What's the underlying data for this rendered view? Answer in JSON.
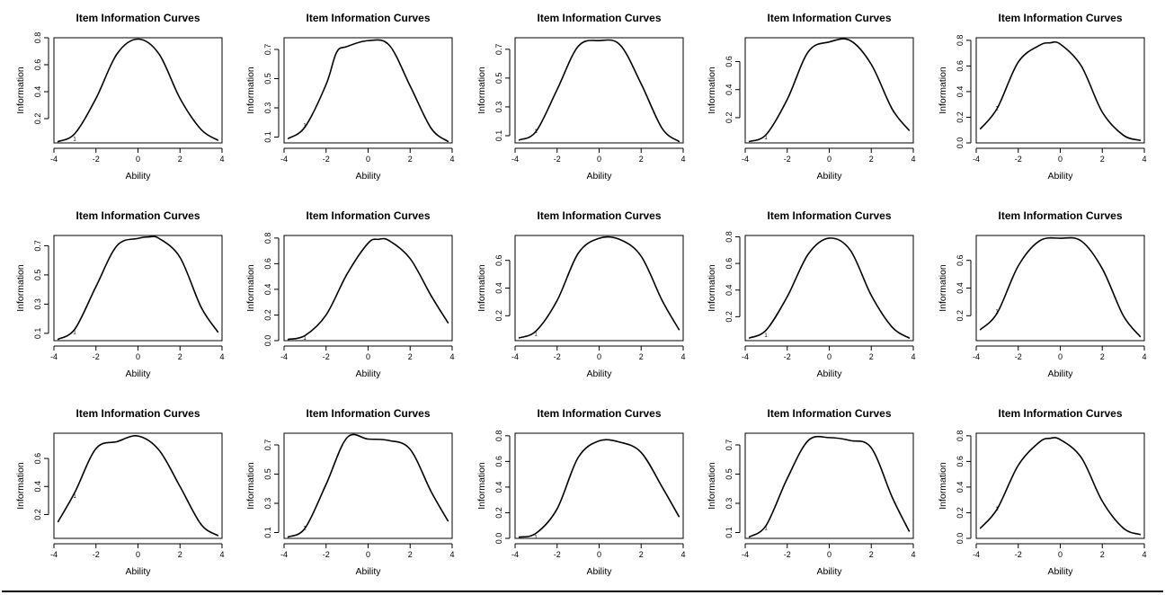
{
  "chart_data": [
    {
      "type": "line",
      "title": "Item Information Curves",
      "xlabel": "Ability",
      "ylabel": "Information",
      "xlim": [
        -4,
        4
      ],
      "ylim": [
        0.02,
        0.8
      ],
      "xticks": [
        "-4",
        "-2",
        "0",
        "2",
        "4"
      ],
      "yticks": [
        "0.2",
        "0.4",
        "0.6",
        "0.8"
      ],
      "item_marker": "1",
      "item_marker_at": [
        -3.1,
        0.05
      ],
      "series": [
        {
          "x": [
            -3.8,
            -3.0,
            -2.0,
            -1.0,
            0.0,
            1.0,
            2.0,
            3.0,
            3.8
          ],
          "y": [
            0.03,
            0.09,
            0.35,
            0.68,
            0.79,
            0.68,
            0.35,
            0.12,
            0.04
          ]
        }
      ]
    },
    {
      "type": "line",
      "title": "Item Information Curves",
      "xlabel": "Ability",
      "ylabel": "Information",
      "xlim": [
        -4,
        4
      ],
      "ylim": [
        0.06,
        0.78
      ],
      "xticks": [
        "-4",
        "-2",
        "0",
        "2",
        "4"
      ],
      "yticks": [
        "0.1",
        "0.3",
        "0.5",
        "0.7"
      ],
      "item_marker": "1",
      "item_marker_at": [
        -3.1,
        0.18
      ],
      "series": [
        {
          "x": [
            -3.8,
            -3.0,
            -2.0,
            -1.5,
            -1.0,
            0.0,
            1.0,
            2.0,
            3.0,
            3.8
          ],
          "y": [
            0.09,
            0.17,
            0.46,
            0.68,
            0.72,
            0.76,
            0.73,
            0.45,
            0.16,
            0.07
          ]
        }
      ]
    },
    {
      "type": "line",
      "title": "Item Information Curves",
      "xlabel": "Ability",
      "ylabel": "Information",
      "xlim": [
        -4,
        4
      ],
      "ylim": [
        0.05,
        0.78
      ],
      "xticks": [
        "-4",
        "-2",
        "0",
        "2",
        "4"
      ],
      "yticks": [
        "0.1",
        "0.3",
        "0.5",
        "0.7"
      ],
      "item_marker": "1",
      "item_marker_at": [
        -3.1,
        0.13
      ],
      "series": [
        {
          "x": [
            -3.8,
            -3.0,
            -2.0,
            -1.0,
            0.0,
            1.0,
            2.0,
            3.0,
            3.8
          ],
          "y": [
            0.07,
            0.13,
            0.42,
            0.72,
            0.76,
            0.73,
            0.46,
            0.15,
            0.06
          ]
        }
      ]
    },
    {
      "type": "line",
      "title": "Item Information Curves",
      "xlabel": "Ability",
      "ylabel": "Information",
      "xlim": [
        -4,
        4
      ],
      "ylim": [
        0.02,
        0.77
      ],
      "xticks": [
        "-4",
        "-2",
        "0",
        "2",
        "4"
      ],
      "yticks": [
        "0.2",
        "0.4",
        "0.6"
      ],
      "item_marker": "1",
      "item_marker_at": [
        -3.1,
        0.06
      ],
      "series": [
        {
          "x": [
            -3.8,
            -3.0,
            -2.0,
            -1.0,
            0.0,
            1.0,
            2.0,
            3.0,
            3.8
          ],
          "y": [
            0.03,
            0.08,
            0.33,
            0.67,
            0.74,
            0.75,
            0.58,
            0.26,
            0.11
          ]
        }
      ]
    },
    {
      "type": "line",
      "title": "Item Information Curves",
      "xlabel": "Ability",
      "ylabel": "Information",
      "xlim": [
        -4,
        4
      ],
      "ylim": [
        0.0,
        0.82
      ],
      "xticks": [
        "-4",
        "-2",
        "0",
        "2",
        "4"
      ],
      "yticks": [
        "0.0",
        "0.2",
        "0.4",
        "0.6",
        "0.8"
      ],
      "item_marker": "1",
      "item_marker_at": [
        -3.1,
        0.27
      ],
      "series": [
        {
          "x": [
            -3.8,
            -3.0,
            -2.0,
            -1.0,
            -0.5,
            0.0,
            1.0,
            2.0,
            3.0,
            3.8
          ],
          "y": [
            0.11,
            0.27,
            0.63,
            0.76,
            0.78,
            0.77,
            0.6,
            0.24,
            0.06,
            0.02
          ]
        }
      ]
    },
    {
      "type": "line",
      "title": "Item Information Curves",
      "xlabel": "Ability",
      "ylabel": "Information",
      "xlim": [
        -4,
        4
      ],
      "ylim": [
        0.05,
        0.77
      ],
      "xticks": [
        "-4",
        "-2",
        "0",
        "2",
        "4"
      ],
      "yticks": [
        "0.1",
        "0.3",
        "0.5",
        "0.7"
      ],
      "item_marker": "1",
      "item_marker_at": [
        -3.1,
        0.11
      ],
      "series": [
        {
          "x": [
            -3.8,
            -3.0,
            -2.0,
            -1.0,
            0.0,
            0.5,
            1.0,
            2.0,
            3.0,
            3.8
          ],
          "y": [
            0.06,
            0.13,
            0.42,
            0.7,
            0.75,
            0.76,
            0.75,
            0.62,
            0.28,
            0.11
          ]
        }
      ]
    },
    {
      "type": "line",
      "title": "Item Information Curves",
      "xlabel": "Ability",
      "ylabel": "Information",
      "xlim": [
        -4,
        4
      ],
      "ylim": [
        0.0,
        0.82
      ],
      "xticks": [
        "-4",
        "-2",
        "0",
        "2",
        "4"
      ],
      "yticks": [
        "0.0",
        "0.2",
        "0.4",
        "0.6",
        "0.8"
      ],
      "item_marker": "1",
      "item_marker_at": [
        -3.1,
        0.02
      ],
      "series": [
        {
          "x": [
            -3.8,
            -3.0,
            -2.0,
            -1.0,
            0.0,
            0.5,
            1.0,
            2.0,
            3.0,
            3.8
          ],
          "y": [
            0.01,
            0.04,
            0.2,
            0.52,
            0.76,
            0.79,
            0.78,
            0.64,
            0.35,
            0.14
          ]
        }
      ]
    },
    {
      "type": "line",
      "title": "Item Information Curves",
      "xlabel": "Ability",
      "ylabel": "Information",
      "xlim": [
        -4,
        4
      ],
      "ylim": [
        0.02,
        0.78
      ],
      "xticks": [
        "-4",
        "-2",
        "0",
        "2",
        "4"
      ],
      "yticks": [
        "0.2",
        "0.4",
        "0.6"
      ],
      "item_marker": "1",
      "item_marker_at": [
        -3.1,
        0.07
      ],
      "series": [
        {
          "x": [
            -3.8,
            -3.0,
            -2.0,
            -1.0,
            0.0,
            1.0,
            2.0,
            3.0,
            3.8
          ],
          "y": [
            0.04,
            0.09,
            0.31,
            0.65,
            0.76,
            0.75,
            0.63,
            0.31,
            0.1
          ]
        }
      ]
    },
    {
      "type": "line",
      "title": "Item Information Curves",
      "xlabel": "Ability",
      "ylabel": "Information",
      "xlim": [
        -4,
        4
      ],
      "ylim": [
        0.02,
        0.81
      ],
      "xticks": [
        "-4",
        "-2",
        "0",
        "2",
        "4"
      ],
      "yticks": [
        "0.2",
        "0.4",
        "0.6",
        "0.8"
      ],
      "item_marker": "1",
      "item_marker_at": [
        -3.1,
        0.06
      ],
      "series": [
        {
          "x": [
            -3.8,
            -3.0,
            -2.0,
            -1.0,
            0.0,
            1.0,
            2.0,
            3.0,
            3.8
          ],
          "y": [
            0.04,
            0.1,
            0.35,
            0.67,
            0.79,
            0.7,
            0.36,
            0.12,
            0.04
          ]
        }
      ]
    },
    {
      "type": "line",
      "title": "Item Information Curves",
      "xlabel": "Ability",
      "ylabel": "Information",
      "xlim": [
        -4,
        4
      ],
      "ylim": [
        0.02,
        0.78
      ],
      "xticks": [
        "-4",
        "-2",
        "0",
        "2",
        "4"
      ],
      "yticks": [
        "0.2",
        "0.4",
        "0.6"
      ],
      "item_marker": "1",
      "item_marker_at": [
        -3.1,
        0.23
      ],
      "series": [
        {
          "x": [
            -3.8,
            -3.0,
            -2.0,
            -1.0,
            0.0,
            1.0,
            2.0,
            3.0,
            3.8
          ],
          "y": [
            0.1,
            0.22,
            0.56,
            0.74,
            0.76,
            0.74,
            0.54,
            0.2,
            0.05
          ]
        }
      ]
    },
    {
      "type": "line",
      "title": "Item Information Curves",
      "xlabel": "Ability",
      "ylabel": "Information",
      "xlim": [
        -4,
        4
      ],
      "ylim": [
        0.03,
        0.78
      ],
      "xticks": [
        "-4",
        "-2",
        "0",
        "2",
        "4"
      ],
      "yticks": [
        "0.2",
        "0.4",
        "0.6"
      ],
      "item_marker": "1",
      "item_marker_at": [
        -3.1,
        0.33
      ],
      "series": [
        {
          "x": [
            -3.8,
            -3.0,
            -2.0,
            -1.0,
            0.0,
            1.0,
            2.0,
            3.0,
            3.8
          ],
          "y": [
            0.15,
            0.36,
            0.67,
            0.72,
            0.76,
            0.66,
            0.4,
            0.13,
            0.05
          ]
        }
      ]
    },
    {
      "type": "line",
      "title": "Item Information Curves",
      "xlabel": "Ability",
      "ylabel": "Information",
      "xlim": [
        -4,
        4
      ],
      "ylim": [
        0.06,
        0.78
      ],
      "xticks": [
        "-4",
        "-2",
        "0",
        "2",
        "4"
      ],
      "yticks": [
        "0.1",
        "0.3",
        "0.5",
        "0.7"
      ],
      "item_marker": "1",
      "item_marker_at": [
        -3.1,
        0.13
      ],
      "series": [
        {
          "x": [
            -3.8,
            -3.0,
            -2.0,
            -1.0,
            0.0,
            1.0,
            2.0,
            3.0,
            3.8
          ],
          "y": [
            0.07,
            0.13,
            0.43,
            0.75,
            0.74,
            0.73,
            0.67,
            0.38,
            0.18
          ]
        }
      ]
    },
    {
      "type": "line",
      "title": "Item Information Curves",
      "xlabel": "Ability",
      "ylabel": "Information",
      "xlim": [
        -4,
        4
      ],
      "ylim": [
        0.0,
        0.82
      ],
      "xticks": [
        "-4",
        "-2",
        "0",
        "2",
        "4"
      ],
      "yticks": [
        "0.0",
        "0.2",
        "0.4",
        "0.6",
        "0.8"
      ],
      "item_marker": "1",
      "item_marker_at": [
        -3.1,
        0.01
      ],
      "series": [
        {
          "x": [
            -3.8,
            -3.0,
            -2.0,
            -1.0,
            0.0,
            1.0,
            2.0,
            3.0,
            3.8
          ],
          "y": [
            0.01,
            0.04,
            0.23,
            0.63,
            0.76,
            0.75,
            0.67,
            0.4,
            0.17
          ]
        }
      ]
    },
    {
      "type": "line",
      "title": "Item Information Curves",
      "xlabel": "Ability",
      "ylabel": "Information",
      "xlim": [
        -4,
        4
      ],
      "ylim": [
        0.06,
        0.78
      ],
      "xticks": [
        "-4",
        "-2",
        "0",
        "2",
        "4"
      ],
      "yticks": [
        "0.1",
        "0.3",
        "0.5",
        "0.7"
      ],
      "item_marker": "1",
      "item_marker_at": [
        -3.1,
        0.13
      ],
      "series": [
        {
          "x": [
            -3.8,
            -3.0,
            -2.0,
            -1.0,
            0.0,
            1.0,
            2.0,
            3.0,
            3.8
          ],
          "y": [
            0.07,
            0.15,
            0.47,
            0.73,
            0.75,
            0.73,
            0.68,
            0.34,
            0.11
          ]
        }
      ]
    },
    {
      "type": "line",
      "title": "Item Information Curves",
      "xlabel": "Ability",
      "ylabel": "Information",
      "xlim": [
        -4,
        4
      ],
      "ylim": [
        0.0,
        0.82
      ],
      "xticks": [
        "-4",
        "-2",
        "0",
        "2",
        "4"
      ],
      "yticks": [
        "0.0",
        "0.2",
        "0.4",
        "0.6",
        "0.8"
      ],
      "item_marker": "1",
      "item_marker_at": [
        -3.1,
        0.23
      ],
      "series": [
        {
          "x": [
            -3.8,
            -3.0,
            -2.0,
            -1.0,
            -0.5,
            0.0,
            1.0,
            2.0,
            3.0,
            3.8
          ],
          "y": [
            0.08,
            0.23,
            0.57,
            0.75,
            0.78,
            0.77,
            0.63,
            0.29,
            0.08,
            0.03
          ]
        }
      ]
    }
  ]
}
